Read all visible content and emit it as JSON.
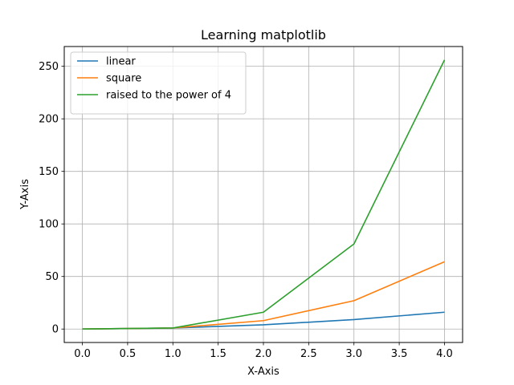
{
  "chart_data": {
    "type": "line",
    "title": "Learning matplotlib",
    "xlabel": "X-Axis",
    "ylabel": "Y-Axis",
    "x": [
      0,
      1,
      2,
      3,
      4
    ],
    "series": [
      {
        "name": "linear",
        "values": [
          0,
          1,
          4,
          9,
          16
        ],
        "color": "#1f77b4"
      },
      {
        "name": "square",
        "values": [
          0,
          1,
          8,
          27,
          64
        ],
        "color": "#ff7f0e"
      },
      {
        "name": "raised to the power of 4",
        "values": [
          0,
          1,
          16,
          81,
          256
        ],
        "color": "#2ca02c"
      }
    ],
    "xlim": [
      -0.2,
      4.2
    ],
    "ylim": [
      -12.8,
      268.8
    ],
    "xticks": [
      "0.0",
      "0.5",
      "1.0",
      "1.5",
      "2.0",
      "2.5",
      "3.0",
      "3.5",
      "4.0"
    ],
    "yticks": [
      "0",
      "50",
      "100",
      "150",
      "200",
      "250"
    ],
    "grid": true,
    "legend_position": "top-left"
  }
}
